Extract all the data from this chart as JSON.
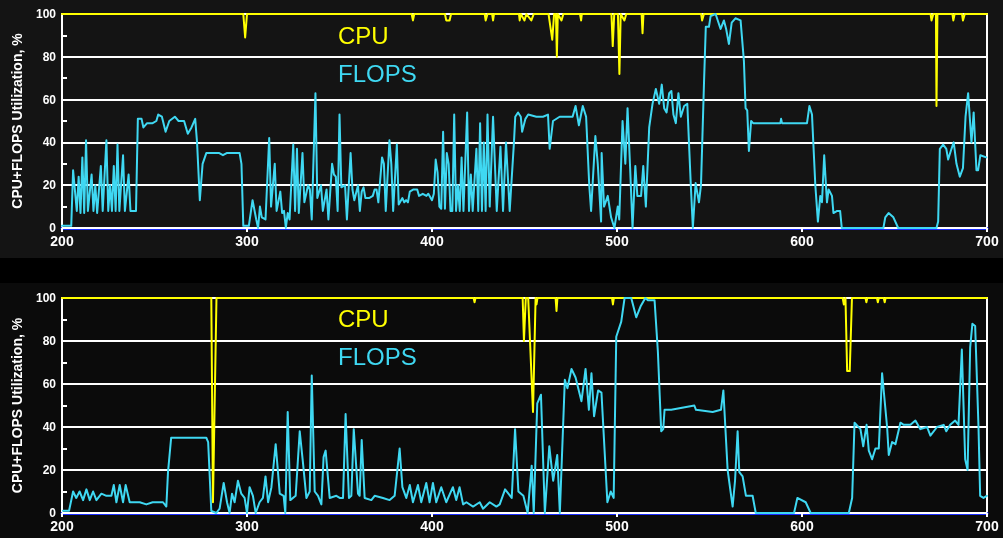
{
  "chart_data": [
    {
      "type": "line",
      "ylabel": "CPU+FLOPS Utilization, %",
      "xlim": [
        200,
        700
      ],
      "xticks": [
        200,
        300,
        400,
        500,
        600,
        700
      ],
      "ylim": [
        0,
        100
      ],
      "yticks": [
        0,
        {
          "value": 10,
          "label": null
        },
        20,
        {
          "value": 30,
          "label": null
        },
        40,
        {
          "value": 50,
          "label": null
        },
        60,
        {
          "value": 70,
          "label": null
        },
        80,
        {
          "value": 90,
          "label": null
        },
        100
      ],
      "grid": "y",
      "legend": "top",
      "series": [
        {
          "name": "CPU",
          "color": "#ffff00",
          "x": [
            200,
            298,
            299,
            300,
            389,
            389.7,
            390.4,
            407,
            407.7,
            409.5,
            410.3,
            428.5,
            429,
            430,
            432.5,
            433,
            433.5,
            447,
            447.4,
            448,
            450,
            451,
            453.7,
            455,
            463,
            464,
            465,
            466,
            467,
            467.5,
            468,
            470,
            471,
            480,
            480.6,
            481,
            497,
            497.7,
            498.5,
            500.5,
            501.3,
            502,
            504,
            505,
            513.3,
            513.8,
            514.3,
            545.5,
            546,
            547,
            669.5,
            670,
            671,
            672.4,
            672.7,
            673.2,
            681.3,
            681.8,
            682.5,
            686.5,
            687,
            688,
            700
          ],
          "values": [
            100,
            100,
            89,
            100,
            100,
            97,
            100,
            100,
            97,
            97,
            100,
            100,
            97,
            100,
            100,
            97,
            100,
            100,
            97,
            100,
            97,
            100,
            97,
            100,
            100,
            94,
            88,
            100,
            100,
            80,
            100,
            97,
            100,
            100,
            97,
            100,
            100,
            85,
            100,
            100,
            72,
            100,
            97,
            100,
            100,
            91,
            100,
            100,
            97,
            100,
            100,
            97,
            100,
            100,
            57,
            100,
            100,
            97,
            100,
            100,
            97,
            100,
            100
          ]
        },
        {
          "name": "FLOPS",
          "color": "#3fd8f2",
          "x": [
            200,
            205,
            206,
            208,
            209,
            210,
            211,
            212,
            213,
            214,
            216,
            217,
            218,
            219,
            221,
            222,
            224,
            225,
            226,
            227,
            228,
            229,
            230,
            231,
            233,
            234,
            236,
            237,
            240,
            241,
            243,
            244,
            246,
            249,
            251,
            252,
            254,
            256,
            258,
            261,
            263,
            266,
            268,
            270,
            272,
            273,
            274.5,
            276,
            278,
            285,
            287,
            289,
            296,
            297,
            298,
            301,
            303,
            305,
            306,
            307,
            308,
            310,
            312,
            313,
            315,
            316,
            318,
            319,
            320,
            321,
            322,
            323,
            325,
            326,
            327,
            328,
            330,
            331,
            333,
            334,
            335,
            337,
            338,
            340,
            341,
            343,
            344,
            346,
            347,
            348,
            349,
            350,
            351,
            353,
            354,
            356,
            357,
            358,
            360,
            361,
            362,
            363,
            364,
            366,
            368,
            369,
            370,
            371,
            373,
            374,
            375,
            377,
            378,
            379,
            381,
            382,
            384,
            385,
            386,
            387,
            388,
            390,
            392,
            393,
            395,
            397,
            398,
            400,
            401,
            402,
            403,
            404,
            405,
            406,
            407,
            408,
            409,
            410,
            411,
            412,
            413,
            414,
            415,
            416,
            417,
            419,
            420,
            421,
            422,
            424,
            425,
            426,
            427,
            428,
            429,
            430,
            431.2,
            433,
            435,
            437,
            438.4,
            440,
            442,
            444.3,
            445,
            446.5,
            448,
            448.7,
            450.5,
            452,
            456.4,
            460,
            462.7,
            463.6,
            465.4,
            469,
            476,
            477.6,
            479.4,
            481.5,
            483.3,
            485,
            486,
            488.3,
            489.6,
            491.4,
            491.7,
            493,
            495,
            496.8,
            498.6,
            500.4,
            501.2,
            503,
            504.5,
            505.7,
            507,
            508.4,
            509.9,
            511,
            513,
            514.2,
            515.6,
            517.4,
            519.2,
            521,
            522.8,
            524.2,
            525.5,
            526.8,
            528.2,
            529.4,
            530.5,
            531.8,
            533.2,
            534.5,
            536.3,
            538,
            539.9,
            541,
            542.5,
            544.3,
            545.4,
            547,
            548,
            549.7,
            550.6,
            553.3,
            556,
            557.8,
            559,
            560.5,
            562,
            564,
            566.8,
            568.6,
            569.5,
            570.4,
            571.3,
            572.5,
            573.6,
            588.3,
            588.7,
            589.2,
            602.7,
            604,
            605.4,
            607.2,
            608.6,
            609.9,
            610.8,
            612,
            613.5,
            614.4,
            616.2,
            617,
            619,
            620.6,
            621.5,
            644,
            645,
            646.8,
            649.4,
            652,
            672.7,
            673.6,
            674.5,
            676.3,
            678,
            679,
            680.8,
            682,
            683.5,
            685.3,
            687,
            688.4,
            689.8,
            691.6,
            692.8,
            694.3,
            695.2,
            696.4,
            699.6
          ],
          "values": [
            1,
            1,
            27,
            8,
            24,
            7,
            33,
            7,
            41,
            8,
            25,
            8,
            20,
            7,
            29,
            8,
            41,
            8,
            20,
            8,
            29,
            8,
            39,
            8,
            34,
            8,
            25,
            8,
            8,
            51,
            51,
            47,
            49,
            49,
            50,
            53,
            52,
            45,
            50,
            52,
            50,
            50,
            44,
            47,
            51,
            40,
            13,
            30,
            35,
            35,
            34,
            35,
            35,
            30,
            1,
            1,
            13,
            4,
            0,
            10,
            5,
            4,
            42,
            10,
            30,
            8,
            17,
            7,
            8,
            0,
            7,
            4,
            39,
            8,
            37,
            7,
            35,
            12,
            20,
            18,
            4,
            63,
            14,
            20,
            8,
            18,
            4,
            30,
            25,
            24,
            8,
            53,
            19,
            20,
            4,
            35,
            18,
            13,
            20,
            8,
            17,
            19,
            14,
            14,
            15,
            18,
            18,
            12,
            33,
            30,
            8,
            41,
            30,
            8,
            39,
            11,
            14,
            12,
            13,
            12,
            17,
            18,
            18,
            15,
            16,
            15,
            16,
            13,
            16,
            32,
            26,
            10,
            9,
            45,
            9,
            35,
            30,
            8,
            8,
            53,
            8,
            20,
            8,
            33,
            8,
            54,
            8,
            25,
            8,
            37,
            8,
            49,
            8,
            40,
            8,
            53,
            10,
            52,
            8,
            38,
            8,
            40,
            8,
            40,
            52,
            54,
            52,
            45,
            51,
            53,
            52,
            52,
            53,
            37,
            50,
            52,
            52,
            57,
            48,
            57,
            52,
            20,
            8,
            43,
            30,
            3,
            35,
            10,
            15,
            5,
            0,
            10,
            4,
            50,
            30,
            56,
            30,
            0,
            29,
            15,
            15,
            29,
            10,
            47,
            58,
            65,
            58,
            67,
            56,
            54,
            63,
            64,
            53,
            49,
            63,
            52,
            57,
            58,
            20,
            0,
            21,
            12,
            20,
            67,
            94,
            94,
            99,
            100,
            93,
            97,
            93,
            86,
            96,
            98,
            97,
            78,
            56,
            55,
            36,
            50,
            49,
            49,
            51,
            49,
            49,
            57,
            53,
            20,
            3,
            15,
            12,
            34,
            12,
            18,
            15,
            7,
            8,
            8,
            0,
            0,
            5,
            7,
            5,
            0,
            0,
            3,
            37,
            39,
            37,
            32,
            37,
            40,
            30,
            24,
            28,
            52,
            63,
            40,
            54,
            27,
            27,
            34,
            33
          ]
        }
      ]
    },
    {
      "type": "line",
      "ylabel": "CPU+FLOPS Utilization, %",
      "xlim": [
        200,
        700
      ],
      "xticks": [
        200,
        300,
        400,
        500,
        600,
        700
      ],
      "ylim": [
        0,
        100
      ],
      "yticks": [
        0,
        {
          "value": 10,
          "label": null
        },
        20,
        {
          "value": 30,
          "label": null
        },
        40,
        {
          "value": 50,
          "label": null
        },
        60,
        {
          "value": 70,
          "label": null
        },
        80,
        {
          "value": 90,
          "label": null
        },
        100
      ],
      "grid": "y",
      "legend": "top",
      "series": [
        {
          "name": "CPU",
          "color": "#ffff00",
          "x": [
            200,
            280.7,
            281.6,
            283.5,
            422.5,
            423,
            423.5,
            449,
            449.7,
            450.7,
            452,
            454.6,
            456,
            456.5,
            457,
            466.8,
            467.3,
            467.8,
            497.3,
            497.8,
            498.3,
            622,
            622.6,
            623.5,
            624.4,
            625.8,
            627,
            634.3,
            634.8,
            635.3,
            640.5,
            641,
            641.5,
            644.2,
            644.7,
            645.2,
            700
          ],
          "values": [
            100,
            100,
            5,
            100,
            100,
            98,
            100,
            100,
            80,
            100,
            100,
            47,
            100,
            97,
            100,
            100,
            94,
            100,
            100,
            97,
            100,
            100,
            97,
            100,
            66,
            66,
            100,
            100,
            98,
            100,
            100,
            98,
            100,
            100,
            98,
            100,
            100
          ]
        },
        {
          "name": "FLOPS",
          "color": "#3fd8f2",
          "x": [
            200.5,
            203.8,
            206,
            207.7,
            209.5,
            211.4,
            213.2,
            215,
            216.8,
            218.6,
            221.3,
            224,
            226.7,
            228,
            229.4,
            231.2,
            233,
            234.4,
            236.6,
            242,
            245.6,
            249,
            254.6,
            256.4,
            257.3,
            259,
            263.6,
            278,
            279,
            280.7,
            283.4,
            285.2,
            287.4,
            289.2,
            290.6,
            291.9,
            293.3,
            295.1,
            296.9,
            298.7,
            300,
            301.4,
            303.2,
            304.7,
            306.8,
            308.6,
            310,
            311.4,
            313.2,
            315.5,
            317.7,
            319.8,
            320.7,
            322,
            323.4,
            326.3,
            328.5,
            330.3,
            332.1,
            333.9,
            335,
            336.6,
            338.4,
            340.2,
            341.4,
            342.5,
            344.7,
            348.3,
            350.1,
            351.9,
            353.3,
            355.1,
            356.4,
            357.7,
            360,
            360.9,
            362,
            363.6,
            367.2,
            369,
            373.5,
            377.1,
            379.8,
            382.5,
            384,
            386.1,
            388,
            389.7,
            392.4,
            394.2,
            396.9,
            398.7,
            400.5,
            402.3,
            405,
            407.7,
            411.3,
            413.1,
            414.9,
            416.8,
            418.6,
            422.2,
            425.8,
            427.6,
            431.2,
            434.8,
            436.6,
            439.5,
            443.1,
            444.9,
            446.7,
            449.4,
            451.7,
            453.9,
            455,
            456.9,
            458.9,
            461,
            463.4,
            465.5,
            467.7,
            469.1,
            471.8,
            473.2,
            475.4,
            477.6,
            480.8,
            483,
            484.8,
            486.2,
            487.6,
            489.8,
            491.6,
            494.8,
            496.6,
            498.2,
            499.6,
            502.3,
            504.1,
            507.7,
            510.4,
            512.7,
            515.3,
            516.7,
            520.3,
            522.1,
            523.9,
            525,
            525.7,
            529.3,
            541.8,
            542.7,
            551.7,
            556.2,
            557.5,
            559.8,
            562.5,
            563.8,
            565.2,
            566.1,
            567.9,
            569.7,
            573.3,
            575,
            595.7,
            597.5,
            602,
            604.7,
            625.3,
            627.1,
            628.4,
            631.6,
            633.1,
            634.9,
            636.1,
            637.9,
            639.7,
            641.5,
            643.3,
            646,
            646.9,
            648.7,
            650.5,
            653.2,
            655,
            658.6,
            661.3,
            664,
            667.6,
            669.4,
            673,
            676.6,
            678,
            680.1,
            682.8,
            684.6,
            686.4,
            688.2,
            689.5,
            690.9,
            692.1,
            693.6,
            695.4,
            696.3,
            698.1,
            699.9
          ],
          "values": [
            1,
            1,
            10,
            7,
            10,
            6,
            11,
            6,
            10,
            6,
            9,
            8,
            8,
            13,
            5,
            13,
            5,
            13,
            5,
            5,
            4,
            5,
            5,
            3,
            19,
            35,
            35,
            35,
            33,
            1,
            0,
            2,
            14,
            5,
            0,
            9,
            5,
            15,
            9,
            7,
            0,
            12,
            8,
            0,
            5,
            7,
            17,
            5,
            12,
            32,
            9,
            8,
            0,
            47,
            6,
            8,
            38,
            23,
            7,
            10,
            64,
            10,
            8,
            4,
            26,
            29,
            7,
            8,
            7,
            7,
            46,
            7,
            8,
            39,
            9,
            8,
            34,
            7,
            6,
            8,
            7,
            6,
            8,
            30,
            12,
            7,
            13,
            5,
            13,
            5,
            14,
            5,
            14,
            5,
            12,
            5,
            12,
            6,
            12,
            4,
            5,
            3,
            5,
            2,
            5,
            3,
            4,
            11,
            7,
            39,
            10,
            8,
            0,
            22,
            0,
            51,
            55,
            0,
            31,
            15,
            27,
            0,
            62,
            58,
            67,
            63,
            52,
            67,
            48,
            65,
            45,
            57,
            56,
            5,
            10,
            7,
            82,
            89,
            100,
            100,
            91,
            96,
            100,
            99,
            99,
            75,
            38,
            39,
            48,
            48,
            50,
            48,
            47,
            48,
            57,
            20,
            3,
            15,
            38,
            19,
            17,
            8,
            8,
            0,
            0,
            7,
            5,
            0,
            0,
            7,
            42,
            39,
            31,
            41,
            29,
            25,
            30,
            30,
            65,
            40,
            27,
            33,
            32,
            42,
            41,
            41,
            43,
            39,
            40,
            36,
            40,
            41,
            38,
            41,
            43,
            41,
            76,
            25,
            20,
            77,
            88,
            87,
            40,
            8,
            7,
            8
          ]
        }
      ]
    }
  ]
}
